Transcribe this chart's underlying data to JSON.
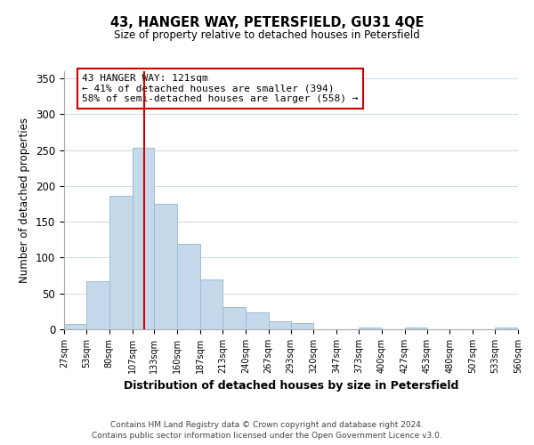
{
  "title": "43, HANGER WAY, PETERSFIELD, GU31 4QE",
  "subtitle": "Size of property relative to detached houses in Petersfield",
  "xlabel": "Distribution of detached houses by size in Petersfield",
  "ylabel": "Number of detached properties",
  "bar_color": "#c6d9ea",
  "bar_edge_color": "#9bbdd4",
  "vline_x": 121,
  "vline_color": "#cc0000",
  "annotation_title": "43 HANGER WAY: 121sqm",
  "annotation_line1": "← 41% of detached houses are smaller (394)",
  "annotation_line2": "58% of semi-detached houses are larger (558) →",
  "bin_edges": [
    27,
    53,
    80,
    107,
    133,
    160,
    187,
    213,
    240,
    267,
    293,
    320,
    347,
    373,
    400,
    427,
    453,
    480,
    507,
    533,
    560
  ],
  "bar_heights": [
    7,
    67,
    186,
    253,
    175,
    119,
    70,
    31,
    24,
    11,
    9,
    0,
    0,
    3,
    0,
    2,
    0,
    0,
    0,
    2
  ],
  "ylim": [
    0,
    360
  ],
  "yticks": [
    0,
    50,
    100,
    150,
    200,
    250,
    300,
    350
  ],
  "footnote1": "Contains HM Land Registry data © Crown copyright and database right 2024.",
  "footnote2": "Contains public sector information licensed under the Open Government Licence v3.0.",
  "background_color": "#ffffff",
  "grid_color": "#d0dce8"
}
